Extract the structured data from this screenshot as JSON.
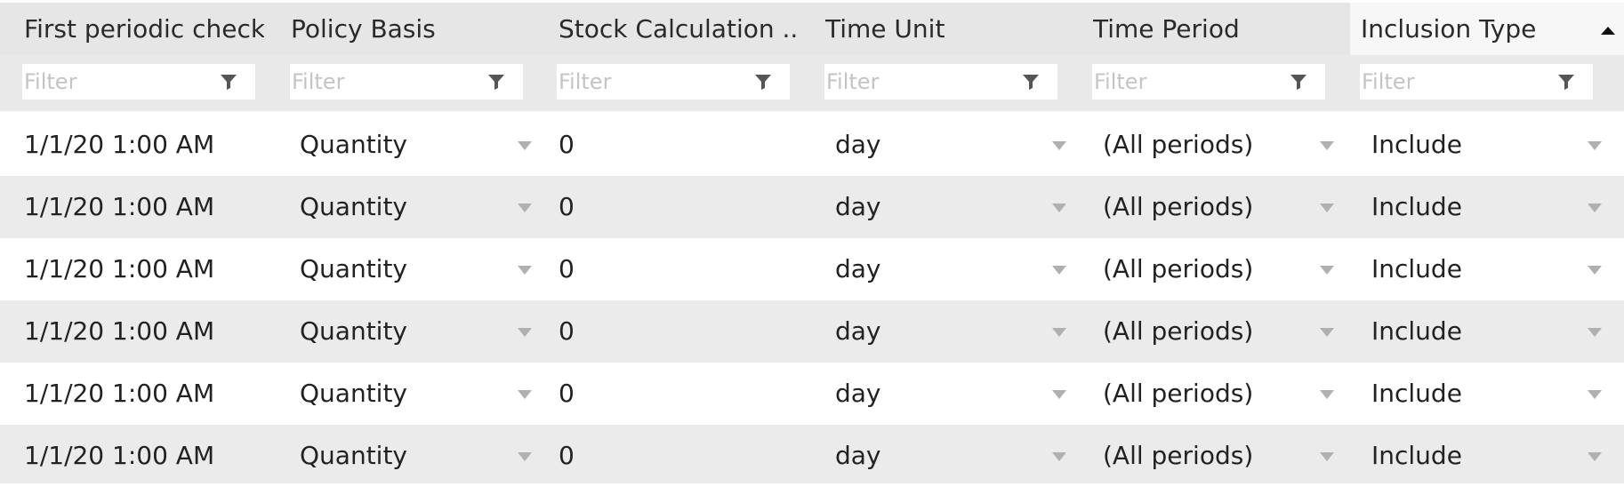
{
  "grid": {
    "columns": [
      {
        "label": "First periodic check"
      },
      {
        "label": "Policy Basis"
      },
      {
        "label": "Stock Calculation ..."
      },
      {
        "label": "Time Unit"
      },
      {
        "label": "Time Period"
      },
      {
        "label": "Inclusion Type",
        "sort": "ascending"
      }
    ],
    "filter_placeholder": "Filter",
    "rows": [
      {
        "first_check": "1/1/20 1:00 AM",
        "policy_basis": "Quantity",
        "stock_calc": "0",
        "time_unit": "day",
        "time_period": "(All periods)",
        "inclusion_type": "Include"
      },
      {
        "first_check": "1/1/20 1:00 AM",
        "policy_basis": "Quantity",
        "stock_calc": "0",
        "time_unit": "day",
        "time_period": "(All periods)",
        "inclusion_type": "Include"
      },
      {
        "first_check": "1/1/20 1:00 AM",
        "policy_basis": "Quantity",
        "stock_calc": "0",
        "time_unit": "day",
        "time_period": "(All periods)",
        "inclusion_type": "Include"
      },
      {
        "first_check": "1/1/20 1:00 AM",
        "policy_basis": "Quantity",
        "stock_calc": "0",
        "time_unit": "day",
        "time_period": "(All periods)",
        "inclusion_type": "Include"
      },
      {
        "first_check": "1/1/20 1:00 AM",
        "policy_basis": "Quantity",
        "stock_calc": "0",
        "time_unit": "day",
        "time_period": "(All periods)",
        "inclusion_type": "Include"
      },
      {
        "first_check": "1/1/20 1:00 AM",
        "policy_basis": "Quantity",
        "stock_calc": "0",
        "time_unit": "day",
        "time_period": "(All periods)",
        "inclusion_type": "Include"
      }
    ]
  },
  "colors": {
    "header_bg": "#e6e6e6",
    "sorted_header_bg": "#f7f7f7",
    "alt_row_bg": "#ebebeb",
    "filter_placeholder": "#c4c4c4",
    "dropdown_arrow": "#b0b0b0"
  },
  "icons": {
    "filter": "funnel-icon",
    "dropdown": "chevron-down-icon",
    "sort": "sort-ascending-icon"
  }
}
